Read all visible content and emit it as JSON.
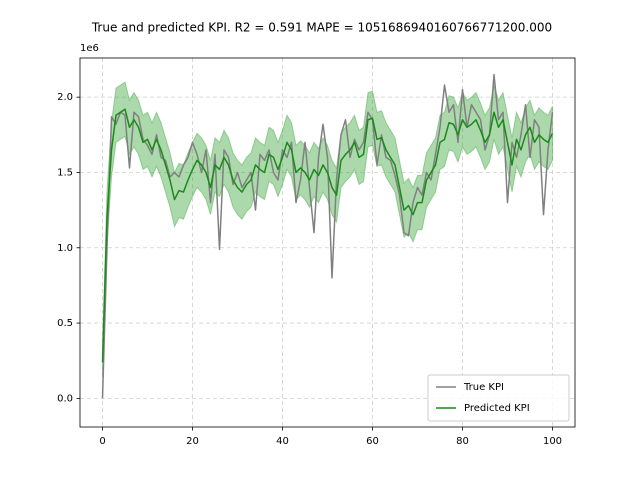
{
  "chart_data": {
    "type": "line",
    "title": "True and predicted KPI. R2 = 0.591 MAPE = 1051686940160766771200.000",
    "y_offset_label": "1e6",
    "x": [
      0,
      1,
      2,
      3,
      4,
      5,
      6,
      7,
      8,
      9,
      10,
      11,
      12,
      13,
      14,
      15,
      16,
      17,
      18,
      19,
      20,
      21,
      22,
      23,
      24,
      25,
      26,
      27,
      28,
      29,
      30,
      31,
      32,
      33,
      34,
      35,
      36,
      37,
      38,
      39,
      40,
      41,
      42,
      43,
      44,
      45,
      46,
      47,
      48,
      49,
      50,
      51,
      52,
      53,
      54,
      55,
      56,
      57,
      58,
      59,
      60,
      61,
      62,
      63,
      64,
      65,
      66,
      67,
      68,
      69,
      70,
      71,
      72,
      73,
      74,
      75,
      76,
      77,
      78,
      79,
      80,
      81,
      82,
      83,
      84,
      85,
      86,
      87,
      88,
      89,
      90,
      91,
      92,
      93,
      94,
      95,
      96,
      97,
      98,
      99,
      100
    ],
    "xlim": [
      -5,
      105
    ],
    "xticks": [
      0,
      20,
      40,
      60,
      80,
      100
    ],
    "ylim": [
      -190000,
      2260000
    ],
    "yticks": [
      {
        "value": 0,
        "label": "0.0"
      },
      {
        "value": 500000,
        "label": "0.5"
      },
      {
        "value": 1000000,
        "label": "1.0"
      },
      {
        "value": 1500000,
        "label": "1.5"
      },
      {
        "value": 2000000,
        "label": "2.0"
      }
    ],
    "grid": true,
    "legend": "lower right",
    "series": [
      {
        "name": "True KPI",
        "color": "#808080",
        "values": [
          0,
          1000000,
          1870000,
          1820000,
          1900000,
          1880000,
          1530000,
          1900000,
          1870000,
          1720000,
          1680000,
          1620000,
          1750000,
          1600000,
          1580000,
          1470000,
          1500000,
          1470000,
          1550000,
          1600000,
          1700000,
          1620000,
          1500000,
          1650000,
          1300000,
          1620000,
          990000,
          1650000,
          1600000,
          1420000,
          1500000,
          1400000,
          1450000,
          1500000,
          1250000,
          1620000,
          1580000,
          1650000,
          1500000,
          1450000,
          1650000,
          1600000,
          1700000,
          1300000,
          1450000,
          1700000,
          1400000,
          1100000,
          1600000,
          1820000,
          1600000,
          800000,
          1450000,
          1750000,
          1850000,
          1600000,
          1720000,
          1650000,
          1700000,
          1900000,
          1850000,
          1550000,
          1750000,
          1600000,
          1580000,
          1480000,
          1350000,
          1100000,
          1080000,
          1300000,
          1400000,
          1350000,
          1500000,
          1450000,
          1620000,
          1800000,
          2080000,
          1900000,
          1950000,
          1700000,
          2050000,
          1800000,
          1950000,
          1900000,
          1850000,
          1650000,
          1750000,
          2150000,
          1850000,
          1900000,
          1300000,
          1700000,
          1600000,
          1750000,
          1950000,
          1600000,
          1850000,
          1800000,
          1220000,
          1650000,
          1900000
        ]
      },
      {
        "name": "Predicted KPI",
        "color": "#1a8a1a",
        "band_color": "#2ca02c",
        "band_opacity": 0.4,
        "values": [
          240000,
          1200000,
          1650000,
          1880000,
          1900000,
          1920000,
          1800000,
          1850000,
          1800000,
          1700000,
          1720000,
          1650000,
          1720000,
          1650000,
          1550000,
          1450000,
          1320000,
          1380000,
          1370000,
          1450000,
          1520000,
          1580000,
          1550000,
          1500000,
          1400000,
          1550000,
          1520000,
          1600000,
          1550000,
          1450000,
          1400000,
          1370000,
          1420000,
          1450000,
          1550000,
          1520000,
          1500000,
          1620000,
          1600000,
          1520000,
          1600000,
          1700000,
          1650000,
          1500000,
          1530000,
          1500000,
          1450000,
          1520000,
          1480000,
          1550000,
          1500000,
          1400000,
          1350000,
          1580000,
          1620000,
          1650000,
          1700000,
          1600000,
          1620000,
          1850000,
          1860000,
          1720000,
          1730000,
          1650000,
          1600000,
          1550000,
          1400000,
          1250000,
          1280000,
          1220000,
          1300000,
          1300000,
          1450000,
          1500000,
          1550000,
          1700000,
          1720000,
          1830000,
          1820000,
          1750000,
          1850000,
          1800000,
          1820000,
          1850000,
          1780000,
          1700000,
          1750000,
          1900000,
          1800000,
          1850000,
          1700000,
          1550000,
          1720000,
          1650000,
          1750000,
          1800000,
          1700000,
          1750000,
          1720000,
          1700000,
          1760000
        ],
        "lower": [
          140000,
          1020000,
          1470000,
          1700000,
          1720000,
          1740000,
          1620000,
          1670000,
          1620000,
          1520000,
          1540000,
          1470000,
          1540000,
          1470000,
          1370000,
          1270000,
          1140000,
          1200000,
          1190000,
          1270000,
          1340000,
          1400000,
          1370000,
          1320000,
          1220000,
          1370000,
          1340000,
          1420000,
          1370000,
          1270000,
          1220000,
          1190000,
          1240000,
          1270000,
          1370000,
          1340000,
          1320000,
          1440000,
          1420000,
          1340000,
          1420000,
          1520000,
          1470000,
          1320000,
          1350000,
          1320000,
          1270000,
          1340000,
          1300000,
          1370000,
          1320000,
          1220000,
          1170000,
          1400000,
          1440000,
          1470000,
          1520000,
          1420000,
          1440000,
          1670000,
          1680000,
          1540000,
          1550000,
          1470000,
          1420000,
          1370000,
          1220000,
          1070000,
          1100000,
          1040000,
          1120000,
          1120000,
          1270000,
          1320000,
          1370000,
          1520000,
          1540000,
          1650000,
          1640000,
          1570000,
          1670000,
          1620000,
          1640000,
          1670000,
          1600000,
          1520000,
          1570000,
          1720000,
          1620000,
          1670000,
          1520000,
          1370000,
          1540000,
          1470000,
          1570000,
          1620000,
          1520000,
          1570000,
          1540000,
          1520000,
          1580000
        ],
        "upper": [
          340000,
          1380000,
          1830000,
          2060000,
          2080000,
          2100000,
          1980000,
          2030000,
          1980000,
          1880000,
          1900000,
          1830000,
          1900000,
          1830000,
          1730000,
          1630000,
          1500000,
          1560000,
          1550000,
          1630000,
          1700000,
          1760000,
          1730000,
          1680000,
          1580000,
          1730000,
          1700000,
          1780000,
          1730000,
          1630000,
          1580000,
          1550000,
          1600000,
          1630000,
          1730000,
          1700000,
          1680000,
          1800000,
          1780000,
          1700000,
          1780000,
          1880000,
          1830000,
          1680000,
          1710000,
          1680000,
          1630000,
          1700000,
          1660000,
          1730000,
          1680000,
          1580000,
          1530000,
          1760000,
          1800000,
          1830000,
          1880000,
          1780000,
          1800000,
          2030000,
          2040000,
          1900000,
          1910000,
          1830000,
          1780000,
          1730000,
          1580000,
          1430000,
          1460000,
          1400000,
          1480000,
          1480000,
          1630000,
          1680000,
          1730000,
          1880000,
          1900000,
          2010000,
          2000000,
          1930000,
          2030000,
          1980000,
          2000000,
          2030000,
          1960000,
          1880000,
          1930000,
          2080000,
          1980000,
          2030000,
          1880000,
          1730000,
          1900000,
          1830000,
          1930000,
          1980000,
          1880000,
          1930000,
          1900000,
          1880000,
          1940000
        ]
      }
    ]
  }
}
